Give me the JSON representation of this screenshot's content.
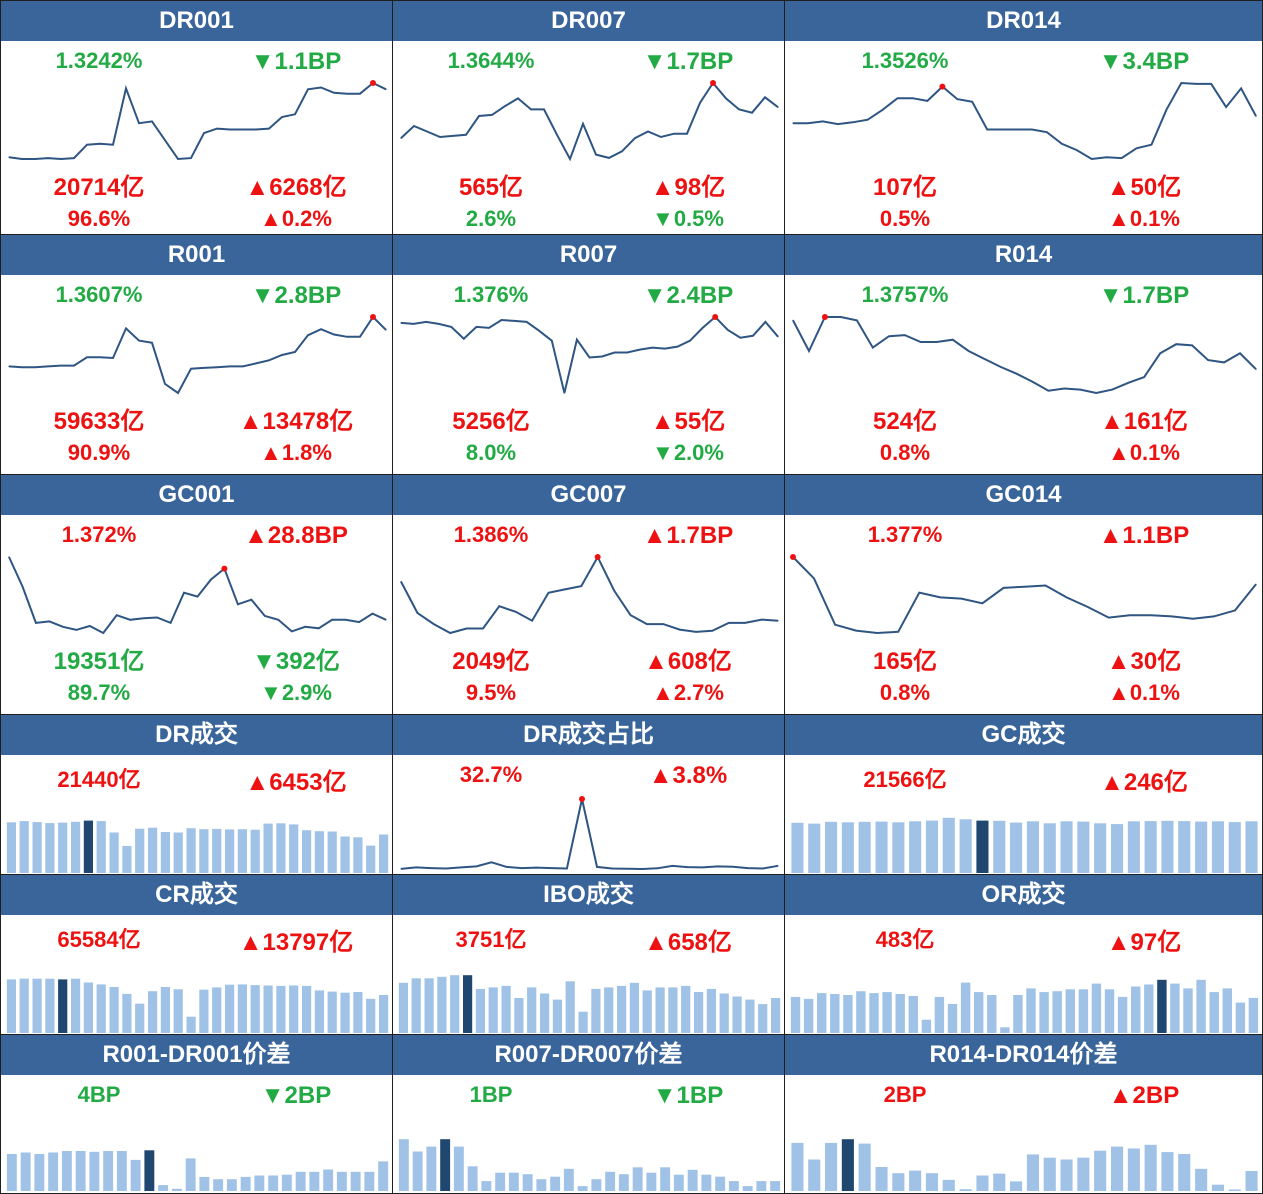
{
  "colors": {
    "header": "#3a659a",
    "up": "#ee1111",
    "down": "#22aa44",
    "line": "#2f5583",
    "bar": "#9fc2e6",
    "bar_highlight": "#1f4770",
    "marker": "#ee1111"
  },
  "arrows": {
    "up": "▲",
    "down": "▼"
  },
  "panels": [
    {
      "title": "DR001",
      "v1": "1.3242%",
      "v1_dir": "down",
      "v2": "1.1BP",
      "v2_dir": "down",
      "v3": "20714亿",
      "v3_dir": "up",
      "v4": "6268亿",
      "v4_dir": "up",
      "v5": "96.6%",
      "v5_dir": "up",
      "v6": "0.2%",
      "v6_dir": "up",
      "chart": {
        "type": "line",
        "values": [
          1.277,
          1.275,
          1.275,
          1.276,
          1.275,
          1.276,
          1.291,
          1.292,
          1.291,
          1.354,
          1.315,
          1.317,
          1.296,
          1.275,
          1.276,
          1.304,
          1.309,
          1.308,
          1.308,
          1.308,
          1.309,
          1.322,
          1.325,
          1.353,
          1.355,
          1.349,
          1.348,
          1.348,
          1.36,
          1.353
        ],
        "marker_index": 28
      }
    },
    {
      "title": "DR007",
      "v1": "1.3644%",
      "v1_dir": "down",
      "v2": "1.7BP",
      "v2_dir": "down",
      "v3": "565亿",
      "v3_dir": "up",
      "v4": "98亿",
      "v4_dir": "up",
      "v5": "2.6%",
      "v5_dir": "down",
      "v6": "0.5%",
      "v6_dir": "down",
      "chart": {
        "type": "line",
        "values": [
          1.312,
          1.323,
          1.318,
          1.313,
          1.314,
          1.315,
          1.332,
          1.333,
          1.341,
          1.348,
          1.338,
          1.338,
          1.315,
          1.293,
          1.325,
          1.297,
          1.294,
          1.3,
          1.312,
          1.318,
          1.313,
          1.316,
          1.316,
          1.344,
          1.362,
          1.348,
          1.338,
          1.335,
          1.349,
          1.34
        ],
        "marker_index": 24
      }
    },
    {
      "title": "DR014",
      "v1": "1.3526%",
      "v1_dir": "down",
      "v2": "3.4BP",
      "v2_dir": "down",
      "v3": "107亿",
      "v3_dir": "up",
      "v4": "50亿",
      "v4_dir": "up",
      "v5": "0.5%",
      "v5_dir": "up",
      "v6": "0.1%",
      "v6_dir": "up",
      "chart": {
        "type": "line",
        "values": [
          1.325,
          1.325,
          1.327,
          1.324,
          1.326,
          1.329,
          1.34,
          1.353,
          1.353,
          1.35,
          1.366,
          1.352,
          1.349,
          1.318,
          1.318,
          1.318,
          1.318,
          1.315,
          1.302,
          1.295,
          1.285,
          1.287,
          1.286,
          1.297,
          1.301,
          1.34,
          1.37,
          1.369,
          1.369,
          1.343,
          1.364,
          1.333
        ],
        "marker_index": 10
      }
    },
    {
      "title": "R001",
      "v1": "1.3607%",
      "v1_dir": "down",
      "v2": "2.8BP",
      "v2_dir": "down",
      "v3": "59633亿",
      "v3_dir": "up",
      "v4": "13478亿",
      "v4_dir": "up",
      "v5": "90.9%",
      "v5_dir": "up",
      "v6": "1.8%",
      "v6_dir": "up",
      "chart": {
        "type": "line",
        "values": [
          1.278,
          1.277,
          1.277,
          1.278,
          1.279,
          1.279,
          1.29,
          1.29,
          1.289,
          1.328,
          1.312,
          1.309,
          1.255,
          1.243,
          1.275,
          1.276,
          1.277,
          1.278,
          1.278,
          1.282,
          1.286,
          1.293,
          1.297,
          1.319,
          1.327,
          1.32,
          1.317,
          1.317,
          1.343,
          1.326
        ],
        "marker_index": 28
      }
    },
    {
      "title": "R007",
      "v1": "1.376%",
      "v1_dir": "down",
      "v2": "2.4BP",
      "v2_dir": "down",
      "v3": "5256亿",
      "v3_dir": "up",
      "v4": "55亿",
      "v4_dir": "up",
      "v5": "8.0%",
      "v5_dir": "down",
      "v6": "2.0%",
      "v6_dir": "down",
      "chart": {
        "type": "line",
        "values": [
          1.387,
          1.386,
          1.388,
          1.386,
          1.383,
          1.371,
          1.383,
          1.382,
          1.39,
          1.389,
          1.388,
          1.379,
          1.369,
          1.316,
          1.37,
          1.352,
          1.353,
          1.357,
          1.357,
          1.36,
          1.362,
          1.361,
          1.363,
          1.369,
          1.382,
          1.393,
          1.38,
          1.372,
          1.374,
          1.388,
          1.373
        ],
        "marker_index": 25
      }
    },
    {
      "title": "R014",
      "v1": "1.3757%",
      "v1_dir": "down",
      "v2": "1.7BP",
      "v2_dir": "down",
      "v3": "524亿",
      "v3_dir": "up",
      "v4": "161亿",
      "v4_dir": "up",
      "v5": "0.8%",
      "v5_dir": "up",
      "v6": "0.1%",
      "v6_dir": "up",
      "chart": {
        "type": "line",
        "values": [
          1.386,
          1.359,
          1.389,
          1.389,
          1.386,
          1.362,
          1.372,
          1.373,
          1.367,
          1.367,
          1.369,
          1.359,
          1.352,
          1.345,
          1.339,
          1.332,
          1.324,
          1.326,
          1.325,
          1.322,
          1.325,
          1.331,
          1.336,
          1.357,
          1.365,
          1.364,
          1.351,
          1.349,
          1.357,
          1.343
        ],
        "marker_index": 2
      }
    },
    {
      "title": "GC001",
      "v1": "1.372%",
      "v1_dir": "up",
      "v2": "28.8BP",
      "v2_dir": "up",
      "v3": "19351亿",
      "v3_dir": "down",
      "v4": "392亿",
      "v4_dir": "down",
      "v5": "89.7%",
      "v5_dir": "down",
      "v6": "2.9%",
      "v6_dir": "down",
      "chart": {
        "type": "line",
        "values": [
          1.321,
          1.283,
          1.236,
          1.238,
          1.231,
          1.227,
          1.232,
          1.223,
          1.246,
          1.24,
          1.242,
          1.243,
          1.236,
          1.275,
          1.27,
          1.292,
          1.306,
          1.26,
          1.266,
          1.245,
          1.24,
          1.225,
          1.231,
          1.229,
          1.24,
          1.24,
          1.237,
          1.248,
          1.24
        ],
        "marker_index": 16
      }
    },
    {
      "title": "GC007",
      "v1": "1.386%",
      "v1_dir": "up",
      "v2": "1.7BP",
      "v2_dir": "up",
      "v3": "2049亿",
      "v3_dir": "up",
      "v4": "608亿",
      "v4_dir": "up",
      "v5": "9.5%",
      "v5_dir": "up",
      "v6": "2.7%",
      "v6_dir": "up",
      "chart": {
        "type": "line",
        "values": [
          1.347,
          1.319,
          1.309,
          1.301,
          1.305,
          1.305,
          1.325,
          1.32,
          1.312,
          1.337,
          1.34,
          1.343,
          1.369,
          1.339,
          1.317,
          1.309,
          1.309,
          1.304,
          1.302,
          1.303,
          1.31,
          1.31,
          1.313,
          1.312
        ],
        "marker_index": 12
      }
    },
    {
      "title": "GC014",
      "v1": "1.377%",
      "v1_dir": "up",
      "v2": "1.1BP",
      "v2_dir": "up",
      "v3": "165亿",
      "v3_dir": "up",
      "v4": "30亿",
      "v4_dir": "up",
      "v5": "0.8%",
      "v5_dir": "up",
      "v6": "0.1%",
      "v6_dir": "up",
      "chart": {
        "type": "line",
        "values": [
          1.365,
          1.347,
          1.308,
          1.303,
          1.301,
          1.302,
          1.335,
          1.331,
          1.33,
          1.326,
          1.339,
          1.34,
          1.341,
          1.331,
          1.323,
          1.314,
          1.316,
          1.316,
          1.315,
          1.313,
          1.315,
          1.32,
          1.342
        ],
        "marker_index": 0
      }
    },
    {
      "title": "DR成交",
      "v1": "21440亿",
      "v1_dir": "up",
      "v2": "6453亿",
      "v2_dir": "up",
      "chart": {
        "type": "bar",
        "values": [
          20000,
          20500,
          20100,
          19700,
          19900,
          20200,
          20700,
          20500,
          16000,
          10700,
          17500,
          17900,
          16200,
          16000,
          17700,
          17300,
          17400,
          17200,
          17300,
          17100,
          19500,
          19600,
          19200,
          16900,
          16500,
          16400,
          14400,
          14100,
          10800,
          15200
        ],
        "highlight_index": 6,
        "max": 30000
      }
    },
    {
      "title": "DR成交占比",
      "v1": "32.7%",
      "v1_dir": "up",
      "v2": "3.8%",
      "v2_dir": "up",
      "chart": {
        "type": "line",
        "values": [
          1.0,
          2.5,
          1.8,
          1.4,
          2.5,
          3.5,
          7.5,
          3.0,
          1.8,
          2.3,
          1.8,
          1.4,
          70.0,
          3.0,
          1.4,
          1.1,
          0.9,
          1.6,
          4.0,
          2.8,
          2.5,
          3.5,
          3.2,
          1.8,
          1.4,
          4.1
        ],
        "marker_index": 12
      }
    },
    {
      "title": "GC成交",
      "v1": "21566亿",
      "v1_dir": "up",
      "v2": "246亿",
      "v2_dir": "up",
      "chart": {
        "type": "bar",
        "values": [
          19800,
          19500,
          20200,
          20000,
          20200,
          20300,
          20000,
          20400,
          20700,
          21800,
          21200,
          20700,
          20600,
          19900,
          20400,
          19600,
          20400,
          20300,
          19600,
          19300,
          20400,
          20500,
          20600,
          20500,
          20300,
          20400,
          20100,
          20400
        ],
        "highlight_index": 11,
        "max": 30000
      }
    },
    {
      "title": "CR成交",
      "v1": "65584亿",
      "v1_dir": "up",
      "v2": "13797亿",
      "v2_dir": "up",
      "chart": {
        "type": "bar",
        "values": [
          70500,
          71500,
          71500,
          71500,
          70500,
          71500,
          66500,
          64000,
          60500,
          51500,
          38500,
          55000,
          60500,
          57500,
          21500,
          57000,
          60000,
          63500,
          64000,
          63000,
          62500,
          62000,
          62500,
          62000,
          56000,
          54500,
          53000,
          54000,
          45000,
          50000
        ],
        "highlight_index": 4,
        "max": 100000
      }
    },
    {
      "title": "IBO成交",
      "v1": "3751亿",
      "v1_dir": "up",
      "v2": "658亿",
      "v2_dir": "up",
      "chart": {
        "type": "bar",
        "values": [
          3300,
          3600,
          3600,
          3700,
          3800,
          3800,
          2900,
          3000,
          3100,
          2300,
          3000,
          2600,
          2200,
          3400,
          1400,
          2900,
          3000,
          3100,
          3300,
          2800,
          3000,
          3000,
          3100,
          2700,
          2900,
          2600,
          2400,
          2200,
          1900,
          2300
        ],
        "highlight_index": 5,
        "max": 5000
      }
    },
    {
      "title": "OR成交",
      "v1": "483亿",
      "v1_dir": "up",
      "v2": "97亿",
      "v2_dir": "up",
      "chart": {
        "type": "bar",
        "values": [
          380,
          360,
          420,
          410,
          400,
          440,
          420,
          430,
          410,
          390,
          140,
          380,
          305,
          530,
          430,
          400,
          60,
          400,
          470,
          430,
          440,
          460,
          460,
          520,
          460,
          380,
          490,
          510,
          560,
          520,
          470,
          560,
          430,
          470,
          320,
          370
        ],
        "highlight_index": 28,
        "max": 800
      }
    },
    {
      "title": "R001-DR001价差",
      "v1": "4BP",
      "v1_dir": "down",
      "v2": "2BP",
      "v2_dir": "down",
      "chart": {
        "type": "bar",
        "values": [
          5.0,
          5.2,
          5.0,
          5.2,
          5.4,
          5.4,
          5.3,
          5.4,
          5.4,
          4.2,
          5.5,
          0.8,
          0.3,
          4.4,
          1.9,
          1.6,
          1.6,
          1.9,
          2.1,
          2.1,
          2.2,
          2.6,
          2.6,
          2.9,
          2.6,
          2.6,
          2.6,
          4.0
        ],
        "highlight_index": 10,
        "max": 10
      }
    },
    {
      "title": "R007-DR007价差",
      "v1": "1BP",
      "v1_dir": "down",
      "v2": "1BP",
      "v2_dir": "down",
      "chart": {
        "type": "bar",
        "values": [
          10.5,
          8.0,
          9.0,
          10.5,
          9.0,
          5.0,
          2.0,
          3.7,
          3.7,
          3.4,
          2.4,
          2.9,
          4.5,
          1.0,
          2.4,
          3.9,
          3.4,
          4.8,
          3.7,
          4.8,
          3.3,
          4.3,
          3.3,
          2.9,
          2.0,
          1.0,
          2.0,
          2.0
        ],
        "highlight_index": 3,
        "max": 15
      }
    },
    {
      "title": "R014-DR014价差",
      "v1": "2BP",
      "v1_dir": "up",
      "v2": "2BP",
      "v2_dir": "up",
      "chart": {
        "type": "bar",
        "values": [
          13.0,
          8.5,
          13.0,
          14.0,
          12.8,
          6.5,
          4.8,
          5.5,
          4.8,
          3.0,
          0.5,
          4.2,
          4.7,
          2.6,
          9.9,
          9.0,
          8.5,
          9.0,
          10.9,
          12.0,
          11.5,
          12.5,
          10.5,
          10.0,
          6.0,
          1.7,
          0.4,
          5.4
        ],
        "highlight_index": 3,
        "max": 20
      }
    }
  ]
}
